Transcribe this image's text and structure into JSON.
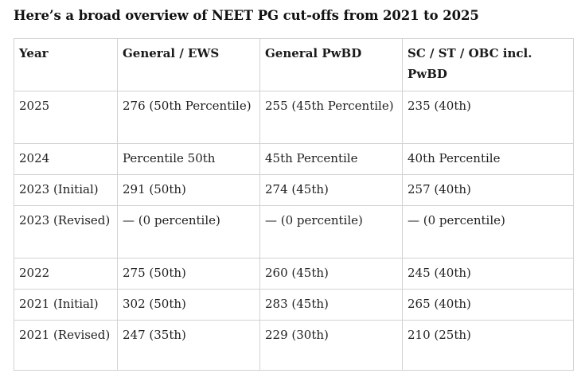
{
  "heading": "Here’s a broad overview of NEET PG cut-offs from 2021 to 2025",
  "table": {
    "headers": [
      "Year",
      "General / EWS",
      "General PwBD",
      "SC / ST / OBC incl. PwBD"
    ],
    "rows": [
      [
        "2025",
        "276 (50th Percentile)",
        "255 (45th Percentile)",
        "235 (40th)"
      ],
      [
        "2024",
        "Percentile 50th",
        "45th Percentile",
        "40th Percentile"
      ],
      [
        "2023 (Initial)",
        "291 (50th)",
        "274 (45th)",
        "257 (40th)"
      ],
      [
        "2023 (Revised)",
        "— (0 percentile)",
        "— (0 percentile)",
        "— (0 percentile)"
      ],
      [
        "2022",
        "275 (50th)",
        "260 (45th)",
        "245 (40th)"
      ],
      [
        "2021 (Initial)",
        "302 (50th)",
        "283 (45th)",
        "265 (40th)"
      ],
      [
        "2021 (Revised)",
        "247 (35th)",
        "229 (30th)",
        "210 (25th)"
      ]
    ]
  }
}
